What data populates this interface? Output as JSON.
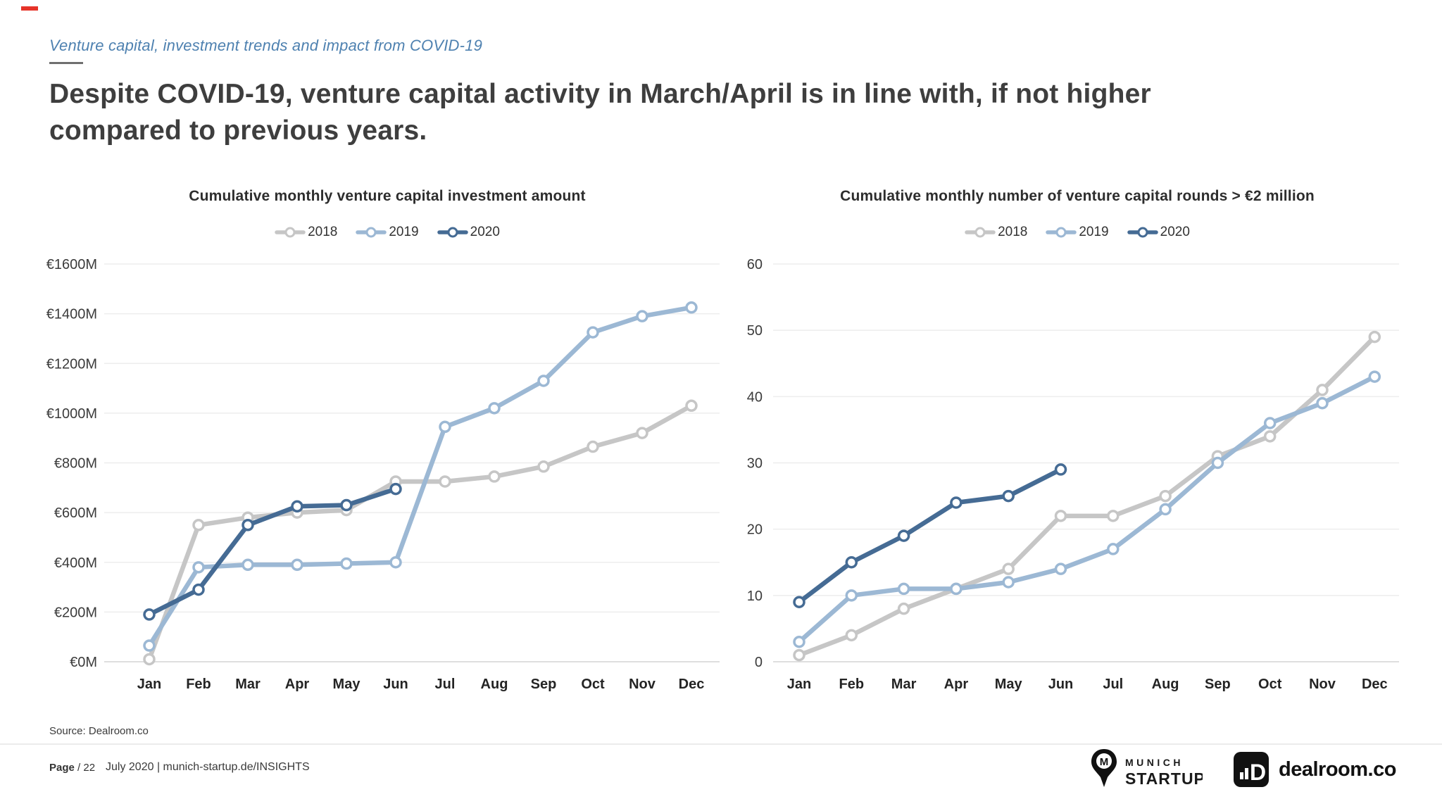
{
  "slide": {
    "eyebrow": "Venture capital, investment trends and impact from COVID-19",
    "title_line1": "Despite COVID-19, venture capital activity in March/April is in line with, if not higher",
    "title_line2": "compared to previous years.",
    "accent_color": "#e63329",
    "eyebrow_color": "#4e81b0",
    "source": "Source: Dealroom.co",
    "footer": {
      "page_label": "Page",
      "page_number": "/ 22",
      "date_info": "July 2020 | munich-startup.de/INSIGHTS"
    },
    "logos": {
      "munich_icon_letter": "M",
      "munich_line1": "MUNICH",
      "munich_line2": "STARTUP",
      "dealroom_text": "dealroom.co"
    }
  },
  "chart_data": [
    {
      "type": "line",
      "title": "Cumulative monthly venture capital investment amount",
      "categories": [
        "Jan",
        "Feb",
        "Mar",
        "Apr",
        "May",
        "Jun",
        "Jul",
        "Aug",
        "Sep",
        "Oct",
        "Nov",
        "Dec"
      ],
      "ylim": [
        0,
        1600
      ],
      "ytick_step": 200,
      "ytick_prefix": "€",
      "ytick_suffix": "M",
      "grid": true,
      "legend_position": "top",
      "series": [
        {
          "name": "2018",
          "color": "#c6c6c6",
          "values": [
            10,
            550,
            580,
            600,
            610,
            725,
            725,
            745,
            785,
            865,
            920,
            1030
          ]
        },
        {
          "name": "2019",
          "color": "#9cb8d4",
          "values": [
            65,
            380,
            390,
            390,
            395,
            400,
            945,
            1020,
            1130,
            1325,
            1390,
            1425
          ]
        },
        {
          "name": "2020",
          "color": "#456b94",
          "values": [
            190,
            290,
            550,
            625,
            630,
            695
          ]
        }
      ]
    },
    {
      "type": "line",
      "title": "Cumulative monthly number of venture capital rounds > €2 million",
      "categories": [
        "Jan",
        "Feb",
        "Mar",
        "Apr",
        "May",
        "Jun",
        "Jul",
        "Aug",
        "Sep",
        "Oct",
        "Nov",
        "Dec"
      ],
      "ylim": [
        0,
        60
      ],
      "ytick_step": 10,
      "ytick_prefix": "",
      "ytick_suffix": "",
      "grid": true,
      "legend_position": "top",
      "series": [
        {
          "name": "2018",
          "color": "#c6c6c6",
          "values": [
            1,
            4,
            8,
            11,
            14,
            22,
            22,
            25,
            31,
            34,
            41,
            49
          ]
        },
        {
          "name": "2019",
          "color": "#9cb8d4",
          "values": [
            3,
            10,
            11,
            11,
            12,
            14,
            17,
            23,
            30,
            36,
            39,
            43
          ]
        },
        {
          "name": "2020",
          "color": "#456b94",
          "values": [
            9,
            15,
            19,
            24,
            25,
            29
          ]
        }
      ]
    }
  ]
}
